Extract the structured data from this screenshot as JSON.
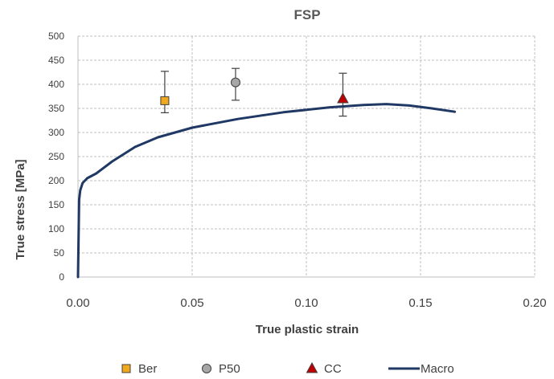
{
  "chart_data": {
    "type": "scatter",
    "title": "FSP",
    "xlabel": "True plastic strain",
    "ylabel": "True stress [MPa]",
    "xlim": [
      0,
      0.2
    ],
    "ylim": [
      0,
      500
    ],
    "xticks": [
      0,
      0.05,
      0.1,
      0.15,
      0.2
    ],
    "xtick_labels": [
      "0.00",
      "0.05",
      "0.10",
      "0.15",
      "0.20"
    ],
    "yticks": [
      0,
      50,
      100,
      150,
      200,
      250,
      300,
      350,
      400,
      450,
      500
    ],
    "ytick_labels": [
      "0",
      "50",
      "100",
      "150",
      "200",
      "250",
      "300",
      "350",
      "400",
      "450",
      "500"
    ],
    "grid": true,
    "legend_position": "bottom",
    "series": [
      {
        "name": "Ber",
        "kind": "scatter",
        "marker": "square",
        "color": "#F0A81E",
        "points": [
          {
            "x": 0.038,
            "y": 366,
            "err_low": 341,
            "err_high": 427
          }
        ]
      },
      {
        "name": "P50",
        "kind": "scatter",
        "marker": "circle",
        "color": "#A6A6A6",
        "points": [
          {
            "x": 0.069,
            "y": 404,
            "err_low": 367,
            "err_high": 433
          }
        ]
      },
      {
        "name": "CC",
        "kind": "scatter",
        "marker": "triangle",
        "color": "#C00000",
        "points": [
          {
            "x": 0.116,
            "y": 370,
            "err_low": 334,
            "err_high": 423
          }
        ]
      },
      {
        "name": "Macro",
        "kind": "line",
        "color": "#1F3864",
        "x": [
          0,
          0.0005,
          0.001,
          0.002,
          0.004,
          0.008,
          0.015,
          0.025,
          0.035,
          0.05,
          0.07,
          0.09,
          0.11,
          0.125,
          0.135,
          0.145,
          0.155,
          0.165
        ],
        "y": [
          0,
          160,
          180,
          195,
          205,
          215,
          240,
          270,
          290,
          310,
          328,
          342,
          352,
          357,
          359,
          356,
          350,
          343
        ]
      }
    ]
  }
}
